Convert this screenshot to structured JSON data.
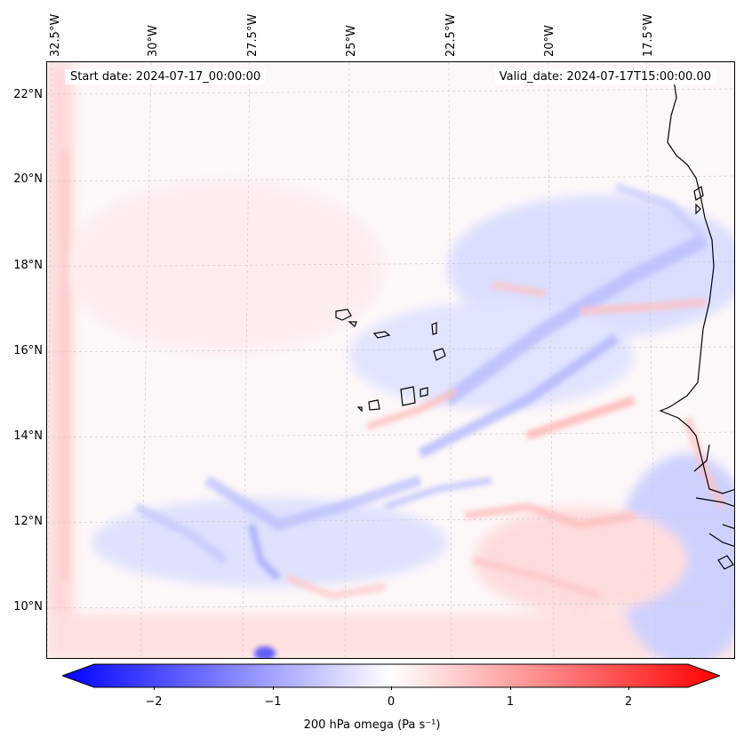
{
  "map": {
    "start_date": "Start date: 2024-07-17_00:00:00",
    "valid_date": "Valid_date: 2024-07-17T15:00:00.00",
    "lon_labels": [
      "32.5°W",
      "30°W",
      "27.5°W",
      "25°W",
      "22.5°W",
      "20°W",
      "17.5°W"
    ],
    "lat_labels": [
      "22°N",
      "20°N",
      "18°N",
      "16°N",
      "14°N",
      "12°N",
      "10°N"
    ]
  },
  "colorbar": {
    "label": "200 hPa omega (Pa s⁻¹)",
    "ticks": [
      "−2",
      "−1",
      "0",
      "1",
      "2"
    ],
    "min": -2.75,
    "max": 2.75,
    "colors": {
      "negative": "#0000ff",
      "zero": "#ffffff",
      "positive": "#ff0000"
    }
  }
}
